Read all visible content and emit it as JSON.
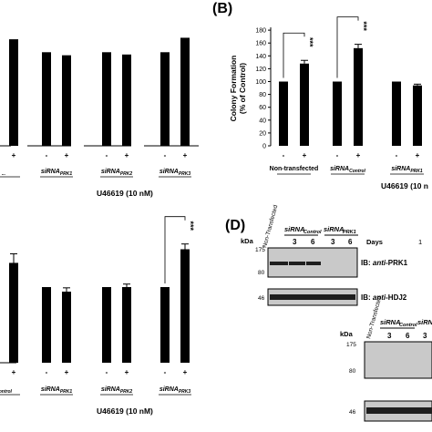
{
  "panel_letters": {
    "b": "(B)",
    "d": "(D)"
  },
  "treatment_signs": [
    "-",
    "+"
  ],
  "chart_data": [
    {
      "type": "bar",
      "panel": "A (top, partially visible)",
      "categories": [
        "...",
        "siRNA PRK1",
        "siRNA PRK2",
        "siRNA PRK3"
      ],
      "category_labels": [
        {
          "main": "",
          "sub": "..."
        },
        {
          "main": "siRNA",
          "sub": "PRK1"
        },
        {
          "main": "siRNA",
          "sub": "PRK2"
        },
        {
          "main": "siRNA",
          "sub": "PRK3"
        }
      ],
      "series": [
        {
          "name": "-",
          "values": [
            null,
            123,
            123,
            123
          ]
        },
        {
          "name": "+",
          "values": [
            140,
            119,
            120,
            142
          ]
        }
      ],
      "significance": "***",
      "footer": "U46619 (10 nM)",
      "ylim": [
        0,
        170
      ],
      "grid": false
    },
    {
      "type": "bar",
      "panel": "B",
      "categories": [
        "Non-transfected",
        "siRNA Control",
        "siRNA PRK1"
      ],
      "category_labels": [
        {
          "main": "Non-transfected",
          "sub": ""
        },
        {
          "main": "siRNA",
          "sub": "Control"
        },
        {
          "main": "siRNA",
          "sub": "PRK1"
        }
      ],
      "series": [
        {
          "name": "-",
          "values": [
            100,
            100,
            100
          ]
        },
        {
          "name": "+",
          "values": [
            128,
            152,
            94
          ]
        }
      ],
      "errors": [
        [
          0,
          0,
          0
        ],
        [
          5,
          6,
          2
        ]
      ],
      "significance": "***",
      "ylabel": "Colony Formation\n(% of Control)",
      "yticks": [
        0,
        20,
        40,
        60,
        80,
        100,
        120,
        140,
        160,
        180
      ],
      "ylim": [
        0,
        180
      ],
      "footer": "U46619 (10 n",
      "grid": false
    },
    {
      "type": "bar",
      "panel": "C (bottom-left, partially visible)",
      "categories": [
        "siRNA Control",
        "siRNA PRK1",
        "siRNA PRK2",
        "siRNA PRK3"
      ],
      "category_labels": [
        {
          "main": "",
          "sub": "Control"
        },
        {
          "main": "siRNA",
          "sub": "PRK1"
        },
        {
          "main": "siRNA",
          "sub": "PRK2"
        },
        {
          "main": "siRNA",
          "sub": "PRK3"
        }
      ],
      "series": [
        {
          "name": "-",
          "values": [
            null,
            100,
            100,
            100
          ]
        },
        {
          "name": "+",
          "values": [
            132,
            94,
            100,
            150
          ]
        }
      ],
      "errors": [
        [
          0,
          0,
          0,
          0
        ],
        [
          12,
          5,
          4,
          7
        ]
      ],
      "significance": "***",
      "footer": "U46619 (10 nM)",
      "ylim": [
        0,
        175
      ],
      "grid": false
    }
  ],
  "blot_top": {
    "lane_header": "Non-Transfected",
    "group_headers": [
      {
        "main": "siRNA",
        "sub": "Control"
      },
      {
        "main": "siRNA",
        "sub": "PRK1"
      }
    ],
    "kda_label": "kDa",
    "days_label": "Days",
    "lanes": [
      "3",
      "6",
      "3",
      "6"
    ],
    "markers_top": [
      "175",
      "80"
    ],
    "markers_bottom": [
      "46"
    ],
    "ib_labels": [
      {
        "prefix": "IB: ",
        "anti": "anti",
        "target": "-PRK1"
      },
      {
        "prefix": "IB: ",
        "anti": "anti",
        "target": "-HDJ2"
      }
    ],
    "cut_letter": "1"
  },
  "blot_bottom": {
    "lane_header": "Non-Transfected",
    "group_headers": [
      {
        "main": "siRNA",
        "sub": "Control"
      },
      {
        "main": "siRNA",
        "sub": ""
      }
    ],
    "kda_label": "kDa",
    "lanes": [
      "3",
      "6",
      "3"
    ],
    "markers": [
      "175",
      "80",
      "46"
    ]
  }
}
